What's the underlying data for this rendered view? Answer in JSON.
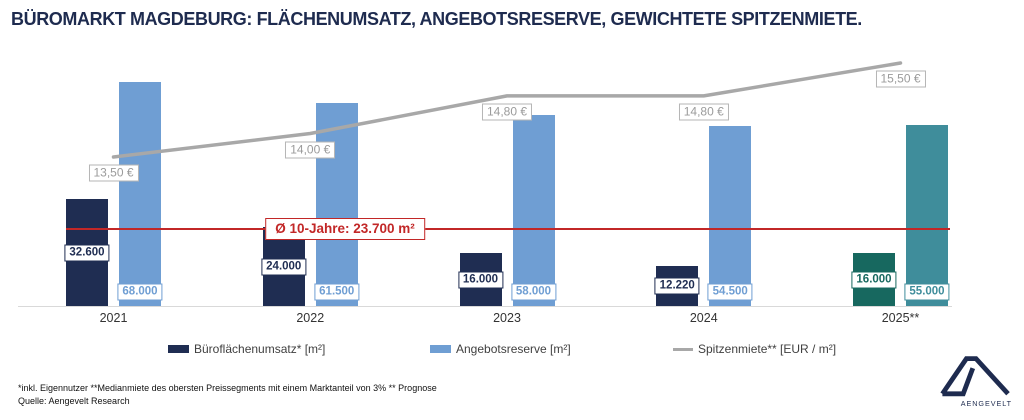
{
  "title": "BÜROMARKT MAGDEBURG: FLÄCHENUMSATZ, ANGEBOTSRESERVE, GEWICHTETE SPITZENMIETE.",
  "footnotes": {
    "line1": "*inkl. Eigennutzer **Medianmiete des obersten Preissegments mit einem Marktanteil von 3% ** Prognose",
    "line2": "Quelle: Aengevelt Research"
  },
  "logo": {
    "brand": "AENGEVELT"
  },
  "colors": {
    "navy": "#1f2d52",
    "light_blue": "#6f9ed3",
    "teal_dark": "#17685f",
    "teal_light": "#3f8d9b",
    "gray_line": "#a8a8a8",
    "red": "#c22727",
    "title_navy": "#1e2b4f"
  },
  "chart_data": {
    "type": "bar",
    "title": "BÜROMARKT MAGDEBURG: FLÄCHENUMSATZ, ANGEBOTSRESERVE, GEWICHTETE SPITZENMIETE.",
    "categories": [
      "2021",
      "2022",
      "2023",
      "2024",
      "2025**"
    ],
    "series": [
      {
        "name": "Büroflächenumsatz* [m²]",
        "kind": "bar",
        "values": [
          32600,
          24000,
          16000,
          12220,
          16000
        ],
        "labels": [
          "32.600",
          "24.000",
          "16.000",
          "12.220",
          "16.000"
        ],
        "colors": [
          "#1f2d52",
          "#1f2d52",
          "#1f2d52",
          "#1f2d52",
          "#17685f"
        ]
      },
      {
        "name": "Angebotsreserve [m²]",
        "kind": "bar",
        "values": [
          68000,
          61500,
          58000,
          54500,
          55000
        ],
        "labels": [
          "68.000",
          "61.500",
          "58.000",
          "54.500",
          "55.000"
        ],
        "colors": [
          "#6f9ed3",
          "#6f9ed3",
          "#6f9ed3",
          "#6f9ed3",
          "#3f8d9b"
        ]
      },
      {
        "name": "Spitzenmiete** [EUR / m²]",
        "kind": "line",
        "values": [
          13.5,
          14.0,
          14.8,
          14.8,
          15.5
        ],
        "labels": [
          "13,50 €",
          "14,00 €",
          "14,80 €",
          "14,80 €",
          "15,50 €"
        ],
        "color": "#a8a8a8"
      }
    ],
    "average_line": {
      "value": 23700,
      "label": "Ø 10-Jahre: 23.700 m²",
      "color": "#c22727"
    },
    "ylim": [
      0,
      72000
    ],
    "grid": false,
    "legend_position": "bottom",
    "xlabel": "",
    "ylabel": ""
  }
}
